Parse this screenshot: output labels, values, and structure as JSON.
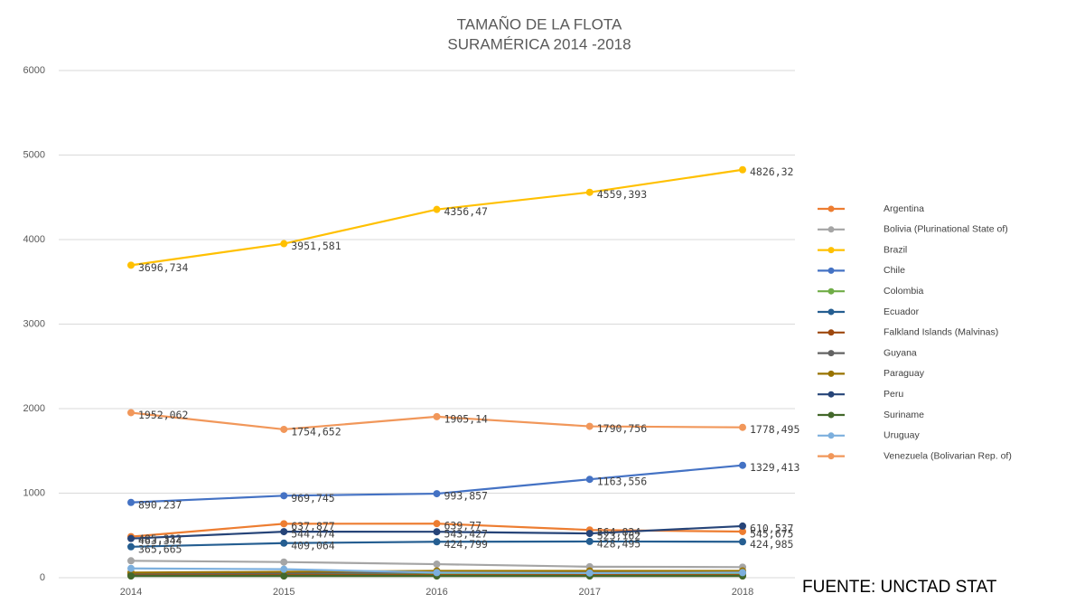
{
  "chart_data": {
    "type": "line",
    "title": "TAMAÑO DE LA FLOTA",
    "subtitle": "SURAMÉRICA 2014 -2018",
    "annotation": "FUENTE: UNCTAD STAT",
    "categories": [
      "2014",
      "2015",
      "2016",
      "2017",
      "2018"
    ],
    "ylim": [
      0,
      6000
    ],
    "yticks": [
      0,
      1000,
      2000,
      3000,
      4000,
      5000,
      6000
    ],
    "grid": true,
    "legend": "right",
    "series": [
      {
        "name": "Argentina",
        "color": "#ed7d31",
        "values": [
          485.332,
          637.877,
          639.77,
          564.834,
          545.675
        ],
        "value_labels": [
          "485,332",
          "637,877",
          "639,77",
          "564,834",
          "545,675"
        ]
      },
      {
        "name": "Bolivia (Plurinational State of)",
        "color": "#a5a5a5",
        "values": [
          200,
          185,
          160,
          130,
          125
        ]
      },
      {
        "name": "Brazil",
        "color": "#ffc000",
        "values": [
          3696.734,
          3951.581,
          4356.47,
          4559.393,
          4826.32
        ],
        "value_labels": [
          "3696,734",
          "3951,581",
          "4356,47",
          "4559,393",
          "4826,32"
        ]
      },
      {
        "name": "Chile",
        "color": "#4472c4",
        "values": [
          890.237,
          969.745,
          993.857,
          1163.556,
          1329.413
        ],
        "value_labels": [
          "890,237",
          "969,745",
          "993,857",
          "1163,556",
          "1329,413"
        ]
      },
      {
        "name": "Colombia",
        "color": "#70ad47",
        "values": [
          40,
          40,
          40,
          40,
          40
        ]
      },
      {
        "name": "Ecuador",
        "color": "#255e91",
        "values": [
          365.665,
          409.064,
          424.799,
          428.495,
          424.985
        ],
        "value_labels": [
          "365,665",
          "409,064",
          "424,799",
          "428,495",
          "424,985"
        ]
      },
      {
        "name": "Falkland Islands (Malvinas)",
        "color": "#9e480e",
        "values": [
          30,
          30,
          30,
          30,
          30
        ]
      },
      {
        "name": "Guyana",
        "color": "#636363",
        "values": [
          50,
          55,
          60,
          60,
          60
        ]
      },
      {
        "name": "Paraguay",
        "color": "#997300",
        "values": [
          60,
          70,
          80,
          80,
          80
        ]
      },
      {
        "name": "Peru",
        "color": "#264478",
        "values": [
          463.344,
          544.474,
          543.427,
          523.162,
          610.537
        ],
        "value_labels": [
          "463,344",
          "544,474",
          "543,427",
          "523,162",
          "610,537"
        ]
      },
      {
        "name": "Suriname",
        "color": "#43682b",
        "values": [
          20,
          20,
          20,
          20,
          20
        ]
      },
      {
        "name": "Uruguay",
        "color": "#7cafdd",
        "values": [
          110,
          100,
          60,
          55,
          60
        ]
      },
      {
        "name": "Venezuela (Bolivarian Rep. of)",
        "color": "#f1975a",
        "values": [
          1952.062,
          1754.652,
          1905.14,
          1790.756,
          1778.495
        ],
        "value_labels": [
          "1952,062",
          "1754,652",
          "1905,14",
          "1790,756",
          "1778,495"
        ]
      }
    ]
  }
}
